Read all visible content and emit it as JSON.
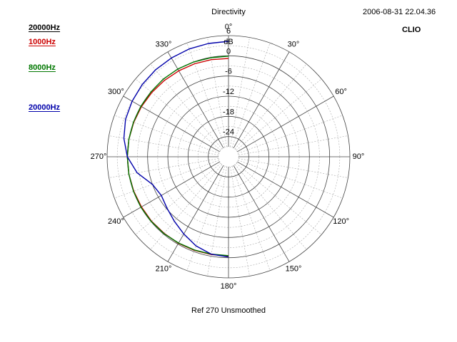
{
  "header": {
    "title": "Directivity",
    "timestamp": "2006-08-31 22.04.36",
    "brand": "CLIO"
  },
  "footer": {
    "reference": "Ref 270   Unsmoothed"
  },
  "legend": [
    {
      "label": "20000Hz",
      "color": "#000000"
    },
    {
      "label": "1000Hz",
      "color": "#cc0000"
    },
    {
      "label": "8000Hz",
      "color": "#007700"
    },
    {
      "label": "20000Hz",
      "color": "#0000aa"
    }
  ],
  "chart_data": {
    "type": "polar",
    "title": "Directivity",
    "radial_unit": "dB",
    "radial_range": [
      -30,
      6
    ],
    "radial_ticks": [
      "6",
      "0",
      "-6",
      "-12",
      "-18",
      "-24"
    ],
    "angle_ticks": [
      "0°",
      "30°",
      "60°",
      "90°",
      "120°",
      "150°",
      "180°",
      "210°",
      "240°",
      "270°",
      "300°",
      "330°"
    ],
    "angle_tick_values": [
      0,
      30,
      60,
      90,
      120,
      150,
      180,
      210,
      240,
      270,
      300,
      330
    ],
    "series": [
      {
        "name": "1000Hz",
        "color": "#cc0000",
        "angles": [
          180,
          190,
          200,
          210,
          220,
          230,
          240,
          250,
          260,
          270,
          280,
          290,
          300,
          310,
          320,
          330,
          340,
          350,
          360
        ],
        "values": [
          -0.5,
          -0.5,
          -0.4,
          -0.3,
          -0.3,
          -0.2,
          -0.2,
          -0.1,
          0,
          0,
          0,
          -0.1,
          -0.2,
          -0.3,
          -0.4,
          -0.5,
          -0.6,
          -0.7,
          -0.8
        ]
      },
      {
        "name": "8000Hz",
        "color": "#007700",
        "angles": [
          180,
          190,
          200,
          210,
          220,
          230,
          240,
          250,
          260,
          270,
          280,
          290,
          300,
          310,
          320,
          330,
          340,
          350,
          360
        ],
        "values": [
          -0.6,
          -0.6,
          -0.5,
          -0.4,
          -0.2,
          -0.1,
          0,
          0,
          0,
          0,
          0,
          0,
          0,
          0,
          0.1,
          0.1,
          0,
          -0.1,
          -0.1
        ]
      },
      {
        "name": "20000Hz",
        "color": "#0000aa",
        "angles": [
          180,
          190,
          200,
          210,
          220,
          230,
          240,
          250,
          260,
          270,
          280,
          290,
          300,
          310,
          320,
          330,
          340,
          350,
          360
        ],
        "values": [
          -0.2,
          -0.6,
          -1.8,
          -3.5,
          -5,
          -6.2,
          -7,
          -6,
          -2.5,
          0,
          1.5,
          2.5,
          3,
          3.4,
          3.7,
          3.9,
          4.1,
          4.2,
          4.3
        ]
      }
    ]
  }
}
